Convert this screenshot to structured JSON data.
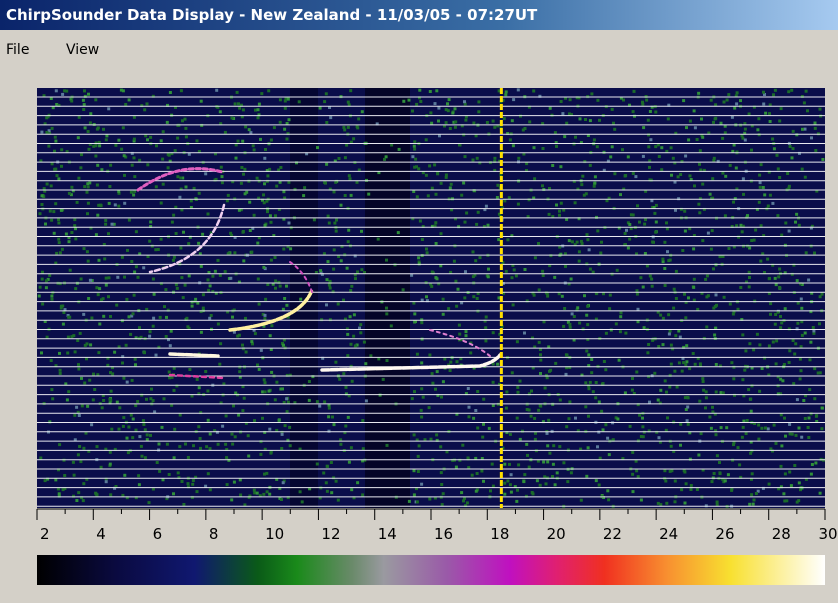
{
  "window": {
    "title": "ChirpSounder Data Display - New Zealand - 11/03/05 - 07:27UT"
  },
  "menu": [
    "File",
    "View"
  ],
  "chart_data": {
    "type": "ionogram",
    "xlim": [
      2,
      30
    ],
    "xticks": [
      2,
      4,
      6,
      8,
      10,
      12,
      14,
      16,
      18,
      20,
      22,
      24,
      26,
      28,
      30
    ],
    "minor_xticks": [
      3,
      5,
      7,
      9,
      11,
      13,
      15,
      17,
      19,
      21,
      23,
      25,
      27,
      29
    ],
    "marker": 18.5
  }
}
